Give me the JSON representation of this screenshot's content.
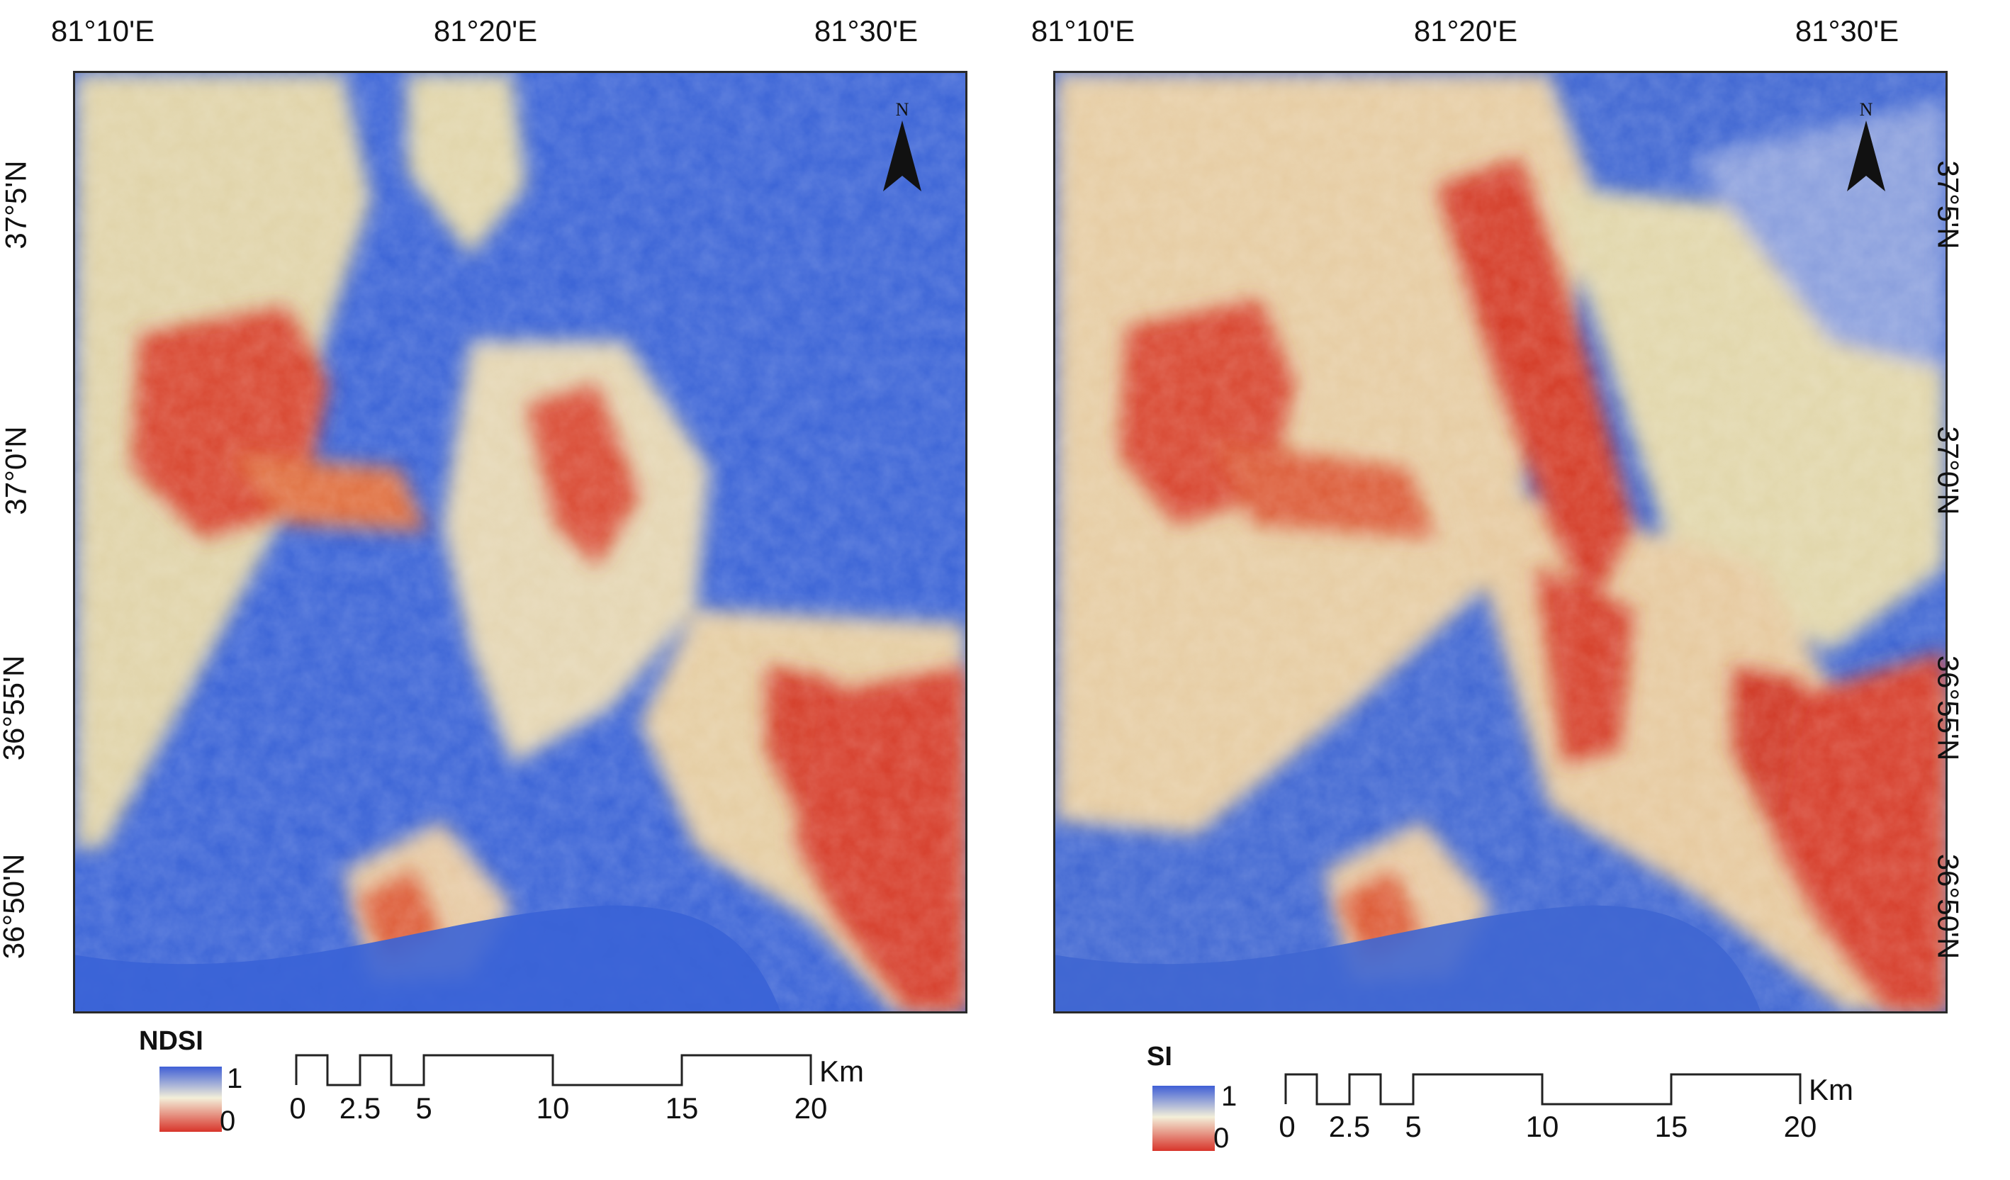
{
  "panels": [
    {
      "legend_title": "NDSI",
      "legend_high": "1",
      "legend_low": "0",
      "north_letter": "N",
      "lon_labels": [
        "81°10'E",
        "81°20'E",
        "81°30'E"
      ],
      "lat_labels": [
        "37°5'N",
        "37°0'N",
        "36°55'N",
        "36°50'N"
      ],
      "scale_ticks": [
        "0",
        "2.5",
        "5",
        "10",
        "15",
        "20"
      ],
      "scale_unit": "Km"
    },
    {
      "legend_title": "SI",
      "legend_high": "1",
      "legend_low": "0",
      "north_letter": "N",
      "lon_labels": [
        "81°10'E",
        "81°20'E",
        "81°30'E"
      ],
      "lat_labels": [
        "37°5'N",
        "37°0'N",
        "36°55'N",
        "36°50'N"
      ],
      "scale_ticks": [
        "0",
        "2.5",
        "5",
        "10",
        "15",
        "20"
      ],
      "scale_unit": "Km"
    }
  ],
  "colors": {
    "high": "#3f5fd6",
    "mid": "#f3efd9",
    "low": "#d8342a",
    "frame": "#2a2a2a"
  }
}
